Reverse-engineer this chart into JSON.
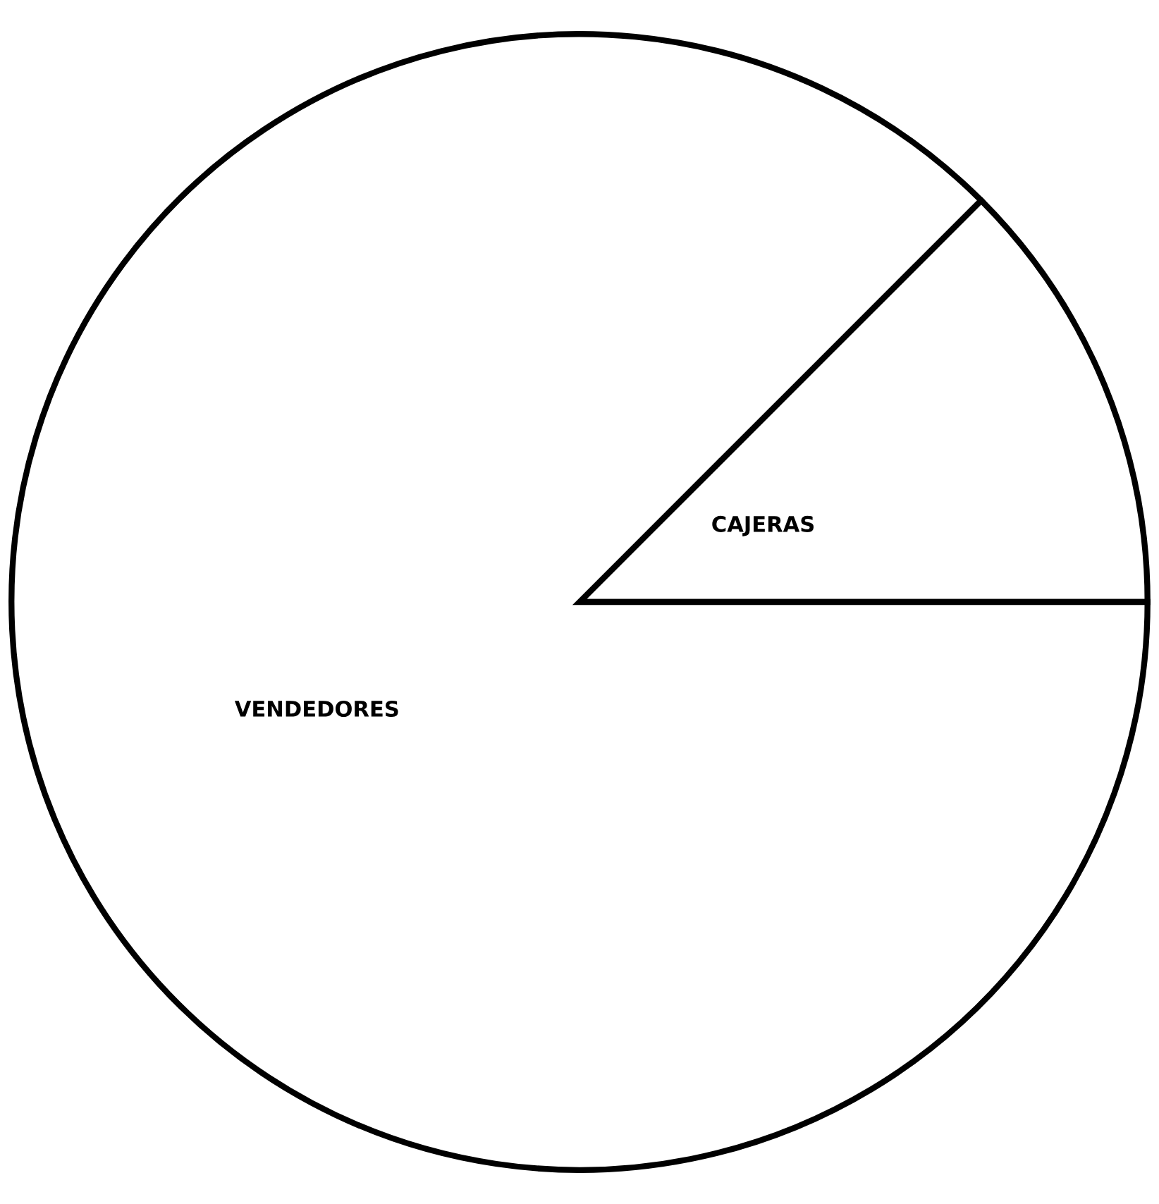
{
  "chart_data": {
    "type": "pie",
    "categories": [
      "CAJERAS",
      "VENDEDORES"
    ],
    "values": [
      12.5,
      87.5
    ],
    "colors": [
      "#ffffff",
      "#ffffff"
    ]
  }
}
